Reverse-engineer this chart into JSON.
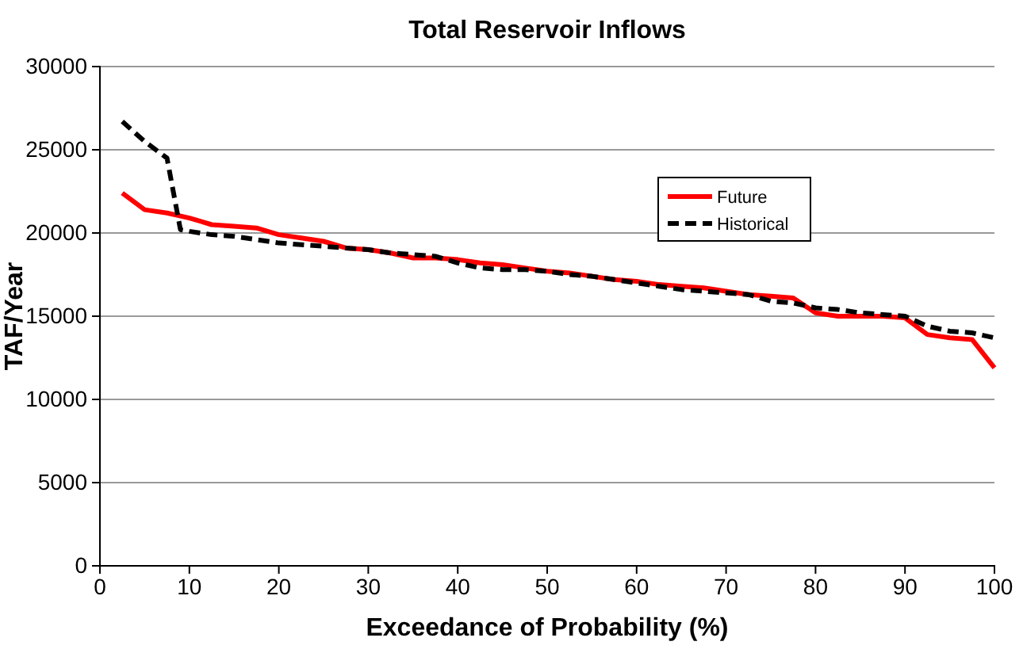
{
  "chart_data": {
    "type": "line",
    "title": "Total Reservoir Inflows",
    "xlabel": "Exceedance of Probability (%)",
    "ylabel": "TAF/Year",
    "xlim": [
      0,
      100
    ],
    "xticks": [
      0,
      10,
      20,
      30,
      40,
      50,
      60,
      70,
      80,
      90,
      100
    ],
    "ylim": [
      0,
      30000
    ],
    "yticks": [
      0,
      5000,
      10000,
      15000,
      20000,
      25000,
      30000
    ],
    "grid": "y",
    "legend": "top right",
    "marker": "none",
    "series": [
      {
        "name": "Future",
        "color": "#ff0000",
        "line_style": "solid",
        "x": [
          2.5,
          5,
          7.5,
          10,
          12.5,
          15,
          17.5,
          20,
          22.5,
          25,
          27.5,
          30,
          32.5,
          35,
          37.5,
          40,
          42.5,
          45,
          47.5,
          50,
          52.5,
          55,
          57.5,
          60,
          62.5,
          65,
          67.5,
          70,
          72.5,
          75,
          77.5,
          80,
          82.5,
          85,
          87.5,
          90,
          92.5,
          95,
          97.5,
          100
        ],
        "values": [
          22400,
          21400,
          21200,
          20900,
          20500,
          20400,
          20300,
          19900,
          19700,
          19500,
          19100,
          19000,
          18800,
          18500,
          18500,
          18400,
          18200,
          18100,
          17900,
          17700,
          17600,
          17400,
          17200,
          17100,
          16900,
          16800,
          16700,
          16500,
          16300,
          16200,
          16100,
          15200,
          15000,
          15000,
          15000,
          14900,
          13900,
          13700,
          13600,
          11900
        ]
      },
      {
        "name": "Historical",
        "color": "#000000",
        "line_style": "dashed",
        "x": [
          2.5,
          5,
          7.5,
          9,
          10,
          12.5,
          15,
          17.5,
          20,
          22.5,
          25,
          27.5,
          30,
          32.5,
          35,
          37.5,
          40,
          42.5,
          45,
          47.5,
          50,
          52.5,
          55,
          57.5,
          60,
          62.5,
          65,
          67.5,
          70,
          72.5,
          75,
          77.5,
          80,
          82.5,
          85,
          87.5,
          90,
          92.5,
          95,
          97.5,
          100
        ],
        "values": [
          26700,
          25500,
          24500,
          20200,
          20100,
          19900,
          19800,
          19600,
          19400,
          19300,
          19200,
          19100,
          19000,
          18800,
          18700,
          18600,
          18200,
          17900,
          17800,
          17800,
          17700,
          17500,
          17400,
          17200,
          17000,
          16800,
          16600,
          16500,
          16400,
          16300,
          15900,
          15800,
          15500,
          15400,
          15200,
          15100,
          15000,
          14400,
          14100,
          14000,
          13700
        ]
      }
    ]
  }
}
